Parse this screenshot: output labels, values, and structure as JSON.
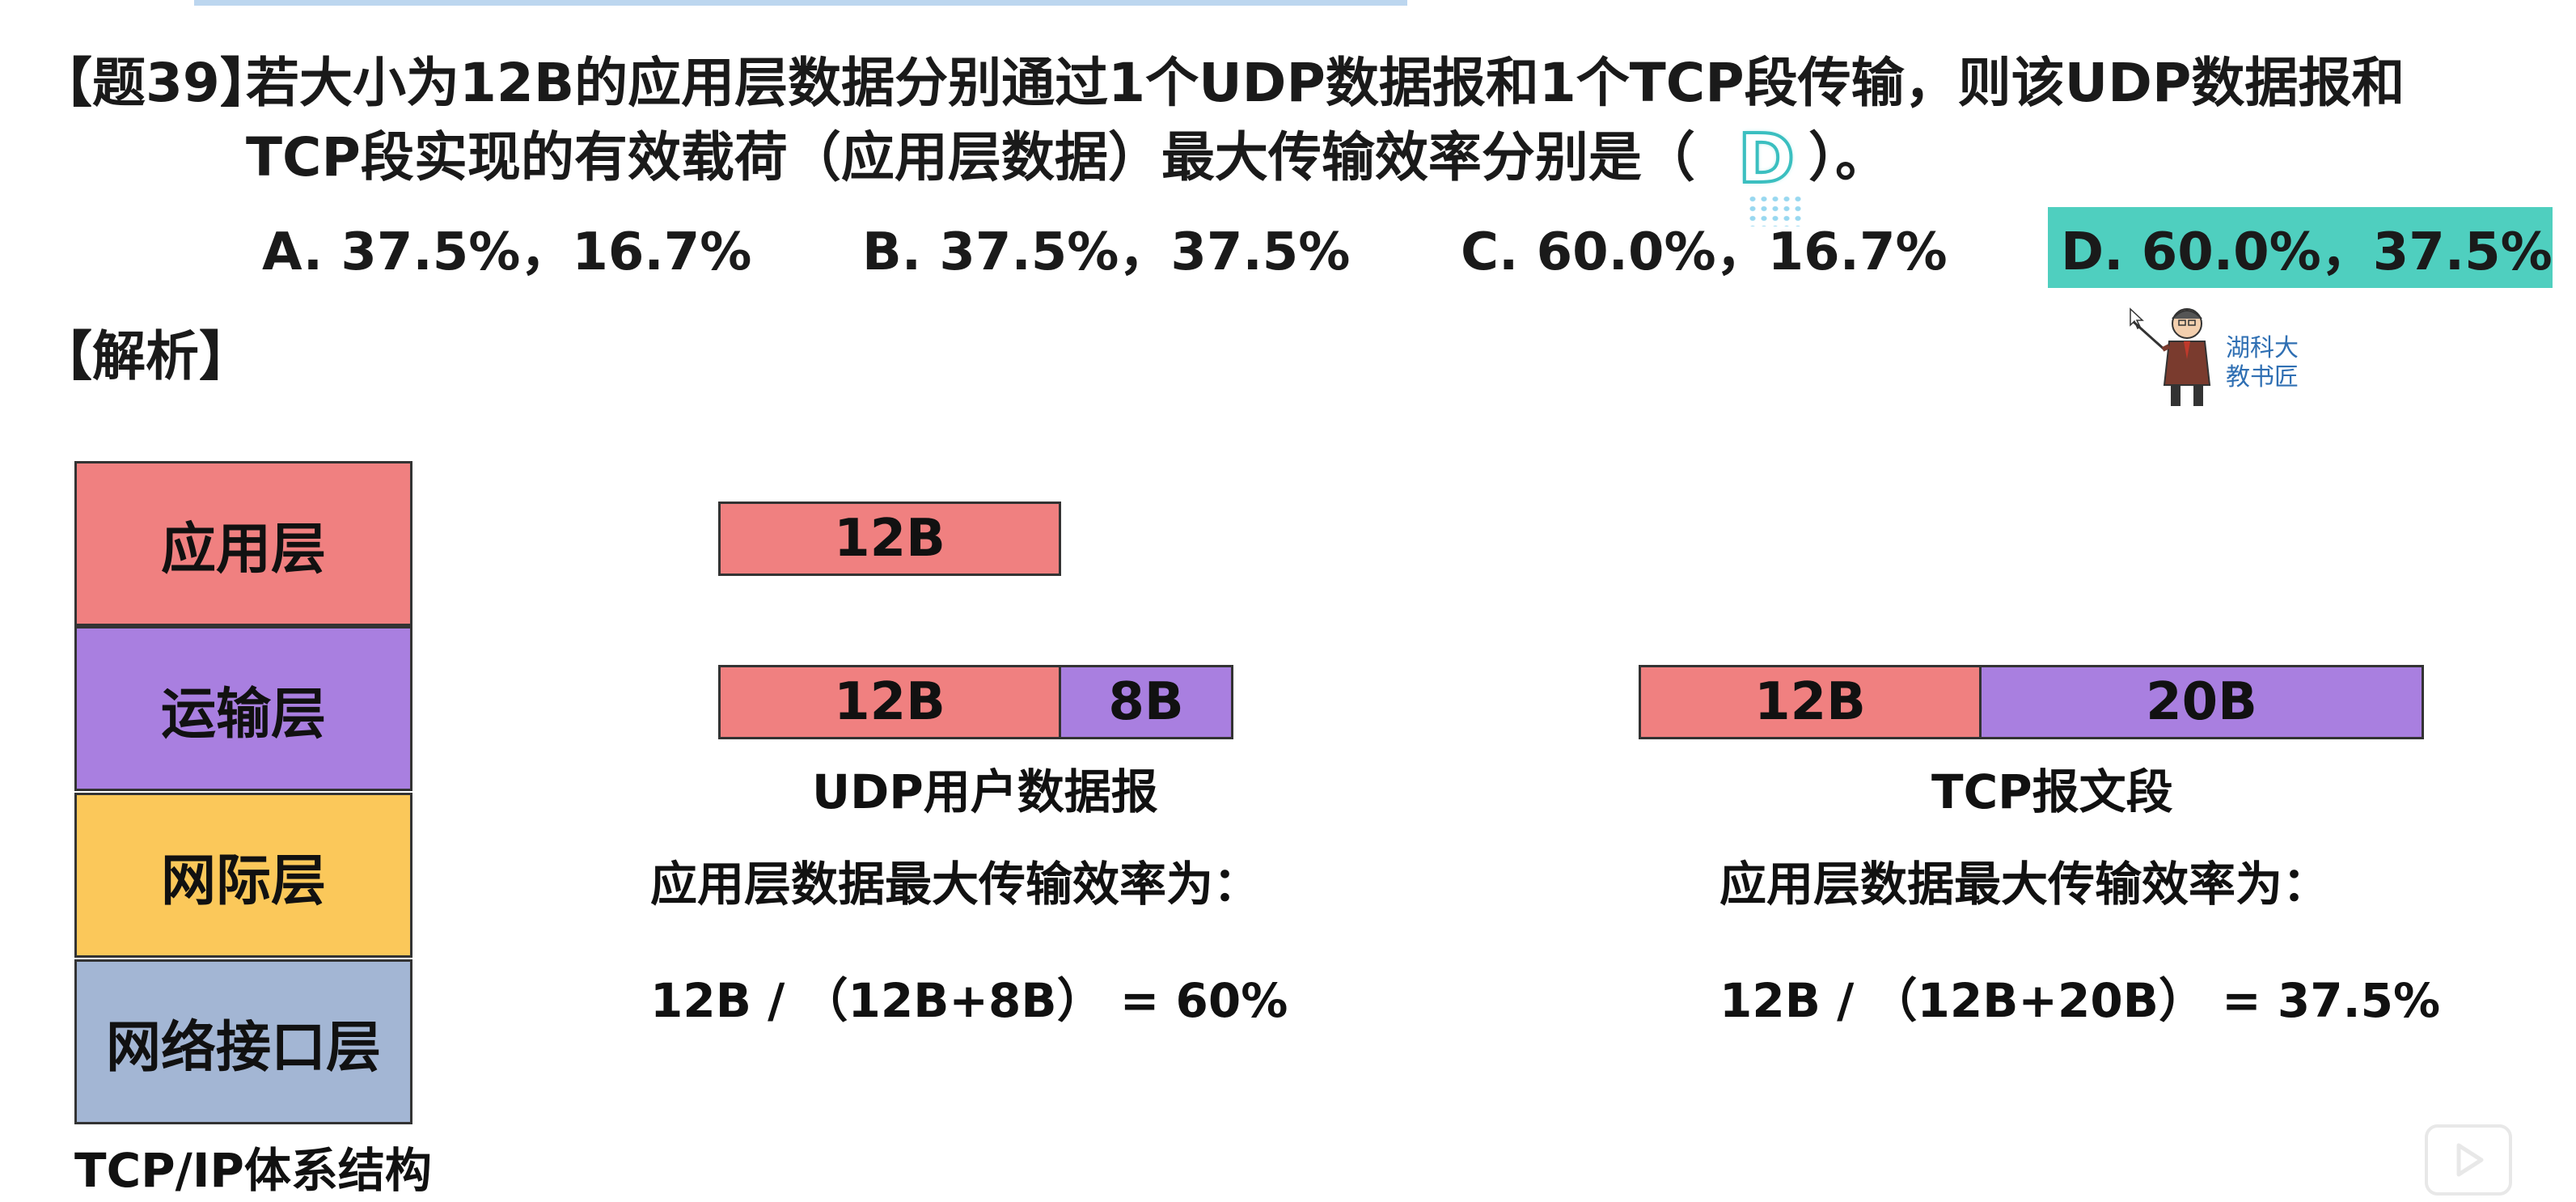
{
  "question": {
    "label": "【题39】",
    "line1": "若大小为12B的应用层数据分别通过1个UDP数据报和1个TCP段传输，则该UDP数据报和",
    "line2_before": "TCP段实现的有效载荷（应用层数据）最大传输效率分别是（",
    "answer": "D",
    "line2_after": "）。",
    "options": [
      "A. 37.5%，16.7%",
      "B. 37.5%，37.5%",
      "C. 60.0%，16.7%",
      "D. 60.0%，37.5%"
    ]
  },
  "analysis_heading": "【解析】",
  "mascot": {
    "line1": "湖科大",
    "line2": "教书匠"
  },
  "stack": {
    "layers": [
      "应用层",
      "运输层",
      "网际层",
      "网络接口层"
    ],
    "caption": "TCP/IP体系结构",
    "colors": [
      "#f08080",
      "#a97fe0",
      "#fbc85a",
      "#a3b6d4"
    ]
  },
  "udp": {
    "app_data": "12B",
    "data": "12B",
    "header": "8B",
    "caption": "UDP用户数据报",
    "efficiency_label": "应用层数据最大传输效率为：",
    "formula": "12B / （12B+8B） = 60%"
  },
  "tcp": {
    "data": "12B",
    "header": "20B",
    "caption": "TCP报文段",
    "efficiency_label": "应用层数据最大传输效率为：",
    "formula": "12B / （12B+20B） = 37.5%"
  },
  "colors": {
    "data_segment": "#f08080",
    "header_segment": "#a97fe0",
    "answer_highlight": "#4fcfbf"
  }
}
